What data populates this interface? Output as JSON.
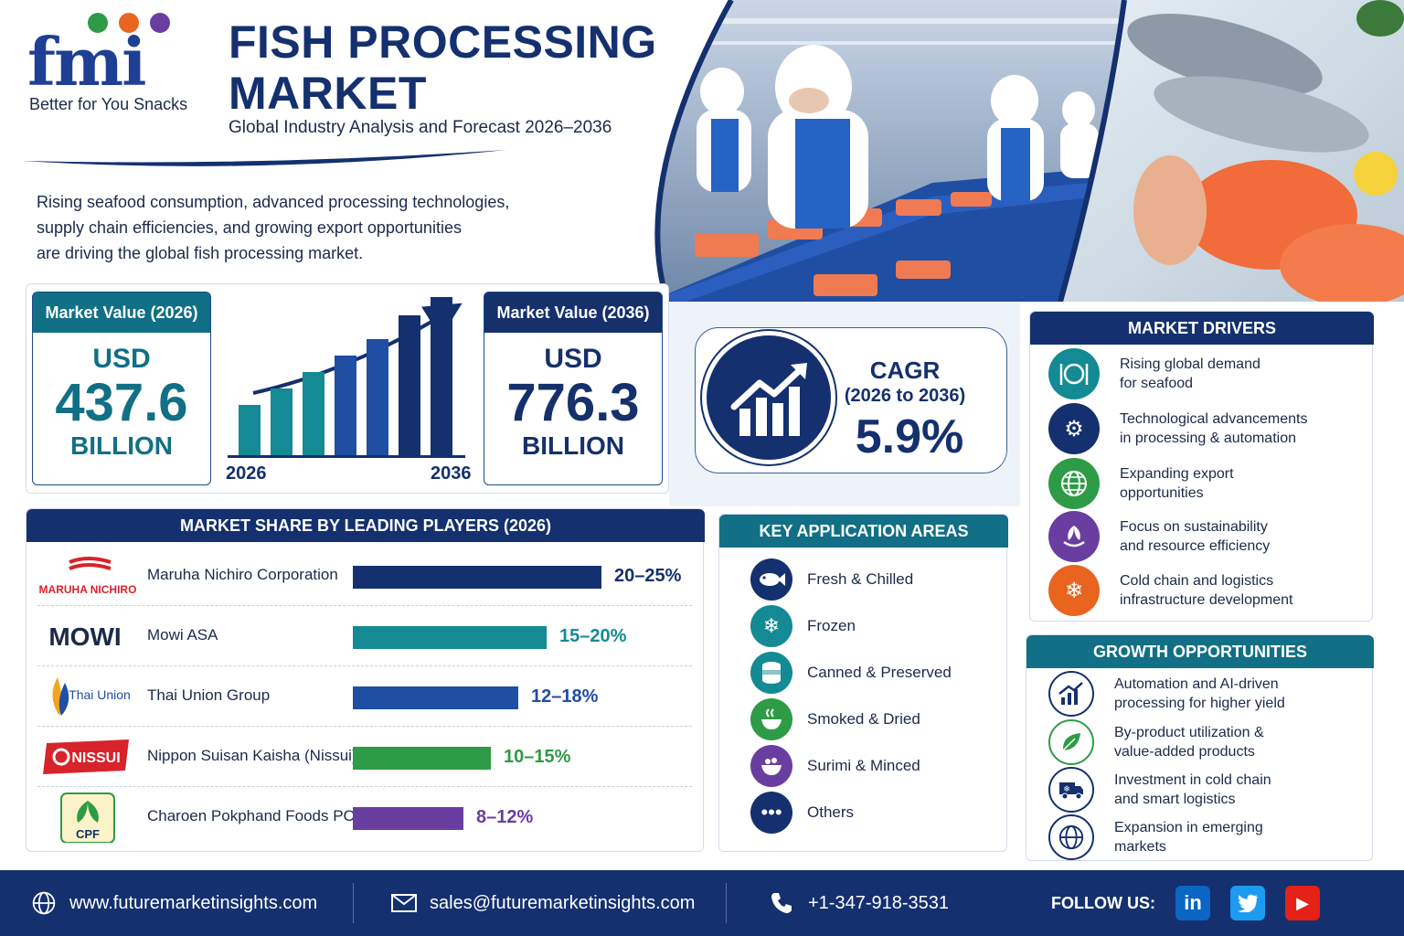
{
  "brand": {
    "logo_text": "fmi",
    "tagline": "Better for You Snacks"
  },
  "header": {
    "title_line1": "FISH PROCESSING",
    "title_line2": "MARKET",
    "subtitle": "Global Industry Analysis and Forecast 2026–2036"
  },
  "intro": {
    "line1": "Rising seafood consumption, advanced processing technologies,",
    "line2": "supply chain efficiencies, and growing export opportunities",
    "line3": "are driving the global fish processing market."
  },
  "market_value": {
    "start": {
      "label": "Market Value (2026)",
      "currency": "USD",
      "value": "437.6",
      "unit": "BILLION"
    },
    "end": {
      "label": "Market Value (2036)",
      "currency": "USD",
      "value": "776.3",
      "unit": "BILLION"
    },
    "chart_start_year": "2026",
    "chart_end_year": "2036"
  },
  "cagr": {
    "label": "CAGR",
    "period": "(2026 to 2036)",
    "value": "5.9%"
  },
  "market_share": {
    "title": "MARKET SHARE BY LEADING PLAYERS (2026)",
    "players": [
      {
        "logo": "MARUHA NICHIRO",
        "name": "Maruha Nichiro Corporation",
        "share": "20–25%",
        "share_mid": 22.5,
        "color": "#14306e"
      },
      {
        "logo": "MOWI",
        "name": "Mowi ASA",
        "share": "15–20%",
        "share_mid": 17.5,
        "color": "#138a94"
      },
      {
        "logo": "Thai Union",
        "name": "Thai Union Group",
        "share": "12–18%",
        "share_mid": 15,
        "color": "#1f4ea3"
      },
      {
        "logo": "NISSUI",
        "name": "Nippon Suisan Kaisha (Nissui)",
        "share": "10–15%",
        "share_mid": 12.5,
        "color": "#2e9b46"
      },
      {
        "logo": "CPF",
        "name": "Charoen Pokphand Foods PCL",
        "share": "8–12%",
        "share_mid": 10,
        "color": "#6a3ea0"
      }
    ]
  },
  "applications": {
    "title": "KEY APPLICATION AREAS",
    "items": [
      {
        "icon": "fish-icon",
        "label": "Fresh & Chilled",
        "color": "#14306e"
      },
      {
        "icon": "snowflake-icon",
        "label": "Frozen",
        "color": "#138a94"
      },
      {
        "icon": "can-icon",
        "label": "Canned & Preserved",
        "color": "#138a94"
      },
      {
        "icon": "smoke-bowl-icon",
        "label": "Smoked & Dried",
        "color": "#2e9b46"
      },
      {
        "icon": "bowl-icon",
        "label": "Surimi & Minced",
        "color": "#6a3ea0"
      },
      {
        "icon": "more-icon",
        "label": "Others",
        "color": "#14306e"
      }
    ]
  },
  "drivers": {
    "title": "MARKET DRIVERS",
    "items": [
      {
        "icon": "plate-icon",
        "line1": "Rising global demand",
        "line2": "for seafood",
        "color": "#138a94"
      },
      {
        "icon": "gears-icon",
        "line1": "Technological advancements",
        "line2": "in processing & automation",
        "color": "#14306e"
      },
      {
        "icon": "globe-icon",
        "line1": "Expanding export",
        "line2": "opportunities",
        "color": "#2e9b46"
      },
      {
        "icon": "plant-icon",
        "line1": "Focus on sustainability",
        "line2": "and resource efficiency",
        "color": "#6a3ea0"
      },
      {
        "icon": "snowflake-icon",
        "line1": "Cold chain and logistics",
        "line2": "infrastructure development",
        "color": "#e8641f"
      }
    ]
  },
  "growth": {
    "title": "GROWTH OPPORTUNITIES",
    "items": [
      {
        "icon": "chart-up-icon",
        "line1": "Automation and AI-driven",
        "line2": "processing for higher yield"
      },
      {
        "icon": "leaf-icon",
        "line1": "By-product utilization &",
        "line2": "value-added products"
      },
      {
        "icon": "truck-icon",
        "line1": "Investment in cold chain",
        "line2": "and smart logistics"
      },
      {
        "icon": "globe-icon",
        "line1": "Expansion in emerging",
        "line2": "markets"
      }
    ]
  },
  "footer": {
    "website": "www.futuremarketinsights.com",
    "email": "sales@futuremarketinsights.com",
    "phone": "+1-347-918-3531",
    "follow": "FOLLOW US:",
    "linkedin": "in",
    "twitter": "t",
    "youtube": "▶"
  },
  "colors": {
    "navy": "#14306e",
    "teal": "#116f86",
    "green": "#2e9b46",
    "purple": "#6a3ea0",
    "orange": "#e8641f"
  }
}
